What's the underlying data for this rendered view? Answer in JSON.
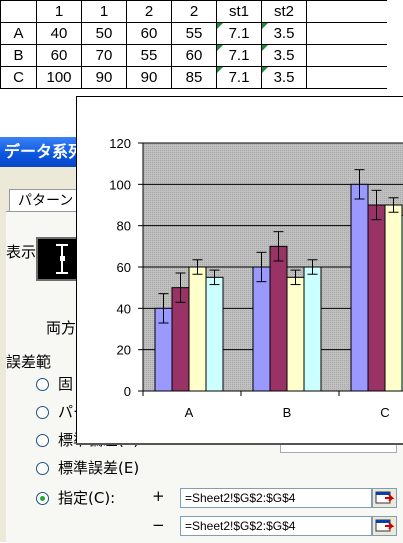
{
  "sheet": {
    "header": [
      "",
      "1",
      "1",
      "2",
      "2",
      "st1",
      "st2"
    ],
    "rows": [
      [
        "A",
        "40",
        "50",
        "60",
        "55",
        "7.1",
        "3.5"
      ],
      [
        "B",
        "60",
        "70",
        "55",
        "60",
        "7.1",
        "3.5"
      ],
      [
        "C",
        "100",
        "90",
        "90",
        "85",
        "7.1",
        "3.5"
      ]
    ]
  },
  "dialog": {
    "title": "データ系列",
    "tab_pattern": "パターン",
    "display_group": "表示(D",
    "preview_caption": "両方",
    "error_group": "誤差範",
    "radio_fixed": "固",
    "radio_percent": "パー",
    "radio_stddev": "標準偏差(S):",
    "radio_stderr": "標準誤差(E)",
    "radio_custom": "指定(C):",
    "plus_label": "+",
    "minus_label": "−",
    "plus_value": "=Sheet2!$G$2:$G$4",
    "minus_value": "=Sheet2!$G$2:$G$4"
  },
  "chart_data": {
    "type": "bar",
    "categories": [
      "A",
      "B",
      "C"
    ],
    "series": [
      {
        "values": [
          40,
          60,
          100
        ],
        "error": [
          7.1,
          7.1,
          7.1
        ],
        "color": "#9999ff"
      },
      {
        "values": [
          50,
          70,
          90
        ],
        "error": [
          7.1,
          7.1,
          7.1
        ],
        "color": "#993366"
      },
      {
        "values": [
          60,
          55,
          90
        ],
        "error": [
          3.5,
          3.5,
          3.5
        ],
        "color": "#ffffcc"
      },
      {
        "values": [
          55,
          60,
          85
        ],
        "error": [
          3.5,
          3.5,
          3.5
        ],
        "color": "#ccffff"
      }
    ],
    "yticks": [
      "0",
      "20",
      "40",
      "60",
      "80",
      "100",
      "120"
    ],
    "ylim": [
      0,
      120
    ],
    "grid": true,
    "plot_bg": "#c0c0c0"
  }
}
